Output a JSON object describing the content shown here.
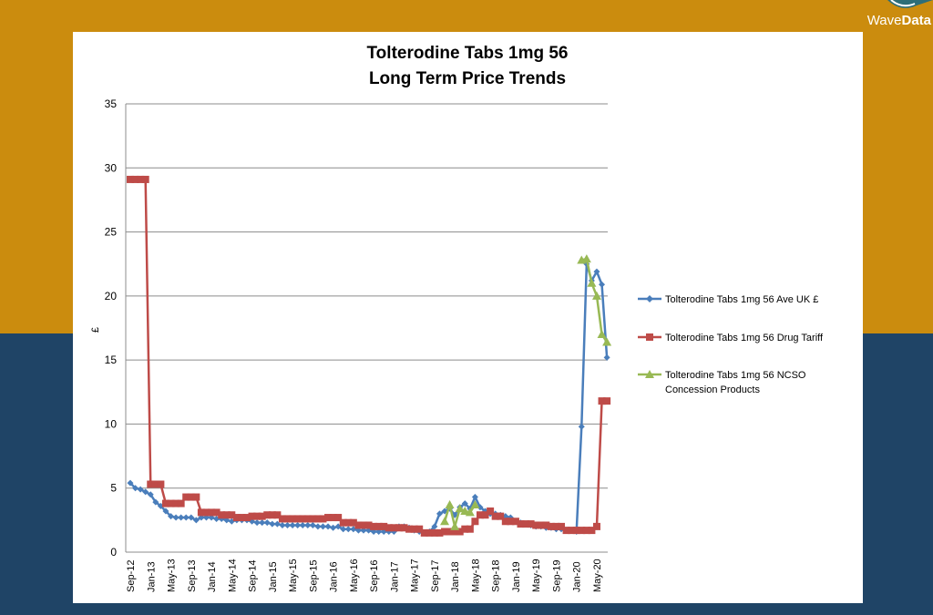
{
  "logo": {
    "part1": "Wave",
    "part2": "Data"
  },
  "colors": {
    "background_top": "#CB8C0E",
    "background_bottom": "#1F4466"
  },
  "chart_data": {
    "type": "line",
    "title": [
      "Tolterodine Tabs 1mg 56",
      "Long Term Price Trends"
    ],
    "xlabel": "",
    "ylabel": "£",
    "ylim": [
      0,
      35
    ],
    "yticks": [
      0,
      5,
      10,
      15,
      20,
      25,
      30,
      35
    ],
    "grid": true,
    "legend_position": "right",
    "x_frequency": "monthly",
    "x_start": "Sep-12",
    "x_end": "Jul-20",
    "tick_labels": [
      "Sep-12",
      "Jan-13",
      "May-13",
      "Sep-13",
      "Jan-14",
      "May-14",
      "Sep-14",
      "Jan-15",
      "May-15",
      "Sep-15",
      "Jan-16",
      "May-16",
      "Sep-16",
      "Jan-17",
      "May-17",
      "Sep-17",
      "Jan-18",
      "May-18",
      "Sep-18",
      "Jan-19",
      "May-19",
      "Sep-19",
      "Jan-20",
      "May-20"
    ],
    "series": [
      {
        "name": "Tolterodine Tabs 1mg 56 Ave UK £",
        "color": "#4A7EBB",
        "marker": "diamond",
        "values": [
          5.4,
          5.0,
          4.9,
          4.7,
          4.5,
          3.9,
          3.6,
          3.2,
          2.8,
          2.7,
          2.7,
          2.7,
          2.7,
          2.5,
          2.7,
          2.7,
          2.7,
          2.6,
          2.6,
          2.5,
          2.4,
          2.5,
          2.5,
          2.5,
          2.4,
          2.3,
          2.3,
          2.3,
          2.2,
          2.2,
          2.1,
          2.1,
          2.1,
          2.1,
          2.1,
          2.1,
          2.1,
          2.0,
          2.0,
          2.0,
          1.9,
          2.0,
          1.8,
          1.8,
          1.8,
          1.7,
          1.7,
          1.7,
          1.6,
          1.6,
          1.6,
          1.6,
          1.6,
          2.0,
          2.0,
          1.9,
          1.7,
          1.6,
          1.5,
          1.6,
          2.0,
          3.0,
          3.2,
          3.4,
          2.9,
          3.5,
          3.8,
          3.4,
          4.3,
          3.5,
          3.2,
          3.0,
          3.0,
          2.9,
          2.8,
          2.7,
          2.4,
          2.3,
          2.2,
          2.1,
          2.0,
          2.0,
          1.9,
          1.9,
          1.8,
          1.8,
          1.7,
          1.7,
          1.6,
          9.8,
          22.5,
          21.2,
          21.9,
          20.9,
          15.2
        ]
      },
      {
        "name": "Tolterodine Tabs 1mg 56 Drug Tariff",
        "color": "#BE4B48",
        "marker": "square",
        "values": [
          29.1,
          29.1,
          29.1,
          29.1,
          5.3,
          5.3,
          5.3,
          3.8,
          3.8,
          3.8,
          3.8,
          4.3,
          4.3,
          4.3,
          3.1,
          3.1,
          3.1,
          3.1,
          2.9,
          2.9,
          2.9,
          2.7,
          2.7,
          2.7,
          2.8,
          2.8,
          2.8,
          2.9,
          2.9,
          2.9,
          2.6,
          2.6,
          2.6,
          2.6,
          2.6,
          2.6,
          2.6,
          2.6,
          2.6,
          2.7,
          2.7,
          2.7,
          2.3,
          2.3,
          2.3,
          2.1,
          2.1,
          2.1,
          2.0,
          2.0,
          2.0,
          1.9,
          1.9,
          1.9,
          1.9,
          1.8,
          1.8,
          1.8,
          1.5,
          1.5,
          1.5,
          1.5,
          1.6,
          1.6,
          1.6,
          1.6,
          1.8,
          1.8,
          2.4,
          2.9,
          2.9,
          3.2,
          2.8,
          2.8,
          2.4,
          2.4,
          2.4,
          2.2,
          2.2,
          2.2,
          2.1,
          2.1,
          2.1,
          2.0,
          2.0,
          2.0,
          1.7,
          1.7,
          1.7,
          1.7,
          1.7,
          1.7,
          2.0,
          11.8,
          11.8
        ]
      },
      {
        "name": "Tolterodine Tabs 1mg 56 NCSO Concession Products",
        "color": "#98B954",
        "marker": "triangle",
        "values": [
          null,
          null,
          null,
          null,
          null,
          null,
          null,
          null,
          null,
          null,
          null,
          null,
          null,
          null,
          null,
          null,
          null,
          null,
          null,
          null,
          null,
          null,
          null,
          null,
          null,
          null,
          null,
          null,
          null,
          null,
          null,
          null,
          null,
          null,
          null,
          null,
          null,
          null,
          null,
          null,
          null,
          null,
          null,
          null,
          null,
          null,
          null,
          null,
          null,
          null,
          null,
          null,
          null,
          null,
          null,
          null,
          null,
          null,
          null,
          null,
          null,
          null,
          2.4,
          3.7,
          2.0,
          3.4,
          3.2,
          3.1,
          3.7,
          null,
          null,
          null,
          null,
          null,
          null,
          null,
          null,
          null,
          null,
          null,
          null,
          null,
          null,
          null,
          null,
          null,
          null,
          null,
          null,
          22.8,
          22.9,
          21.0,
          20.0,
          17.0,
          16.4
        ]
      }
    ],
    "legend": [
      "Tolterodine Tabs 1mg 56 Ave UK £",
      "Tolterodine Tabs 1mg 56 Drug Tariff",
      "Tolterodine Tabs 1mg 56 NCSO",
      "Concession Products"
    ]
  }
}
